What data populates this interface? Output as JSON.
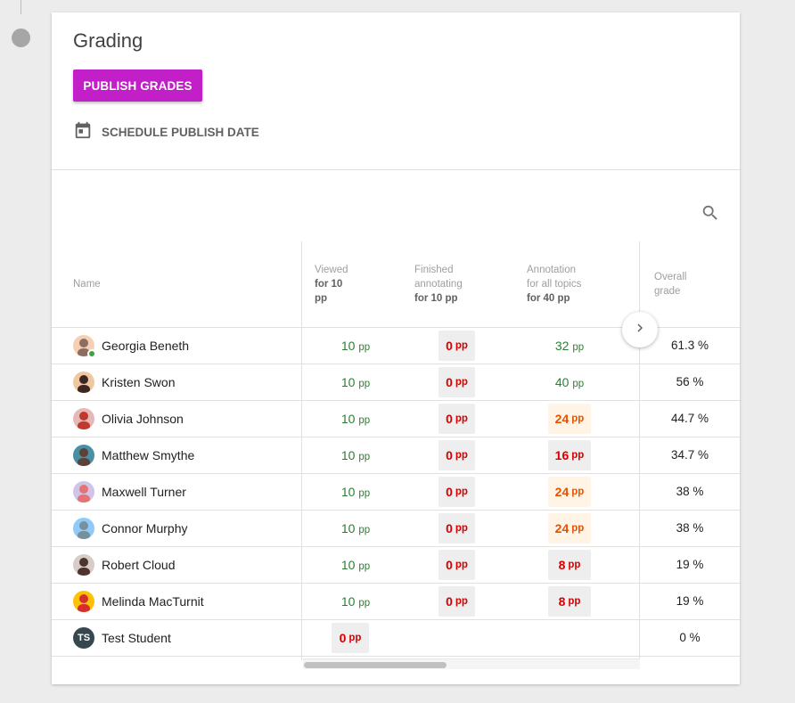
{
  "card": {
    "title": "Grading",
    "publish_label": "PUBLISH GRADES",
    "schedule_label": "SCHEDULE PUBLISH DATE"
  },
  "colors": {
    "accent": "#c21fc9",
    "positive": "#2e7d32",
    "negative": "#d50000",
    "warning": "#e65100"
  },
  "icons": {
    "schedule": "calendar-icon",
    "search": "search-icon",
    "next": "chevron-right-icon"
  },
  "table": {
    "headers": {
      "name": "Name",
      "viewed_l1": "Viewed",
      "viewed_l2": "for 10",
      "viewed_l3": "pp",
      "finished_l1": "Finished",
      "finished_l2": "annotating",
      "finished_l3": "for 10 pp",
      "annotation_l1": "Annotation",
      "annotation_l2": "for all topics",
      "annotation_l3": "for 40 pp",
      "overall_l1": "Overall",
      "overall_l2": "grade"
    },
    "unit": "pp",
    "rows": [
      {
        "name": "Georgia Beneth",
        "viewed": "10",
        "finished": "0",
        "annotation": "32",
        "overall": "61.3 %"
      },
      {
        "name": "Kristen Swon",
        "viewed": "10",
        "finished": "0",
        "annotation": "40",
        "overall": "56 %"
      },
      {
        "name": "Olivia Johnson",
        "viewed": "10",
        "finished": "0",
        "annotation": "24",
        "overall": "44.7 %"
      },
      {
        "name": "Matthew Smythe",
        "viewed": "10",
        "finished": "0",
        "annotation": "16",
        "overall": "34.7 %"
      },
      {
        "name": "Maxwell Turner",
        "viewed": "10",
        "finished": "0",
        "annotation": "24",
        "overall": "38 %"
      },
      {
        "name": "Connor Murphy",
        "viewed": "10",
        "finished": "0",
        "annotation": "24",
        "overall": "38 %"
      },
      {
        "name": "Robert Cloud",
        "viewed": "10",
        "finished": "0",
        "annotation": "8",
        "overall": "19 %"
      },
      {
        "name": "Melinda MacTurnit",
        "viewed": "10",
        "finished": "0",
        "annotation": "8",
        "overall": "19 %"
      },
      {
        "name": "Test Student",
        "initials": "TS",
        "viewed": "0",
        "overall": "0 %"
      }
    ]
  }
}
